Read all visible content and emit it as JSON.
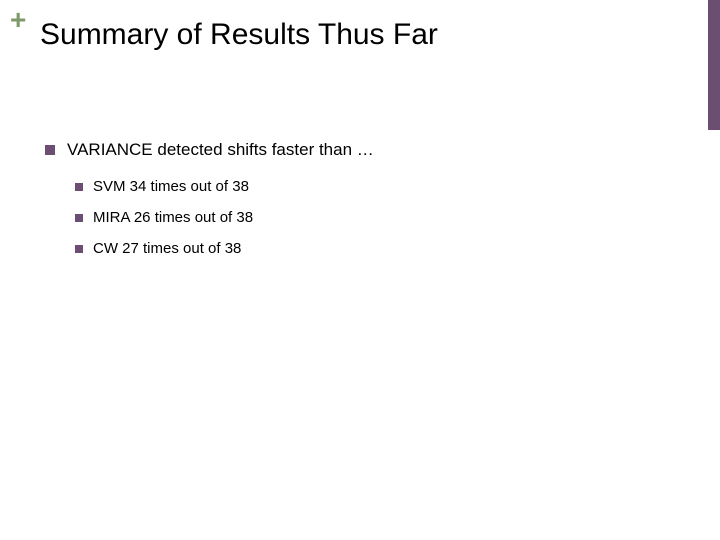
{
  "accent_color": "#6b4e71",
  "plus_color": "#7e9a6b",
  "title": "Summary of Results Thus Far",
  "main_bullet": "VARIANCE detected shifts faster than …",
  "sub_bullets": [
    "SVM 34 times out of 38",
    "MIRA 26 times out of 38",
    "CW 27 times out of 38"
  ]
}
